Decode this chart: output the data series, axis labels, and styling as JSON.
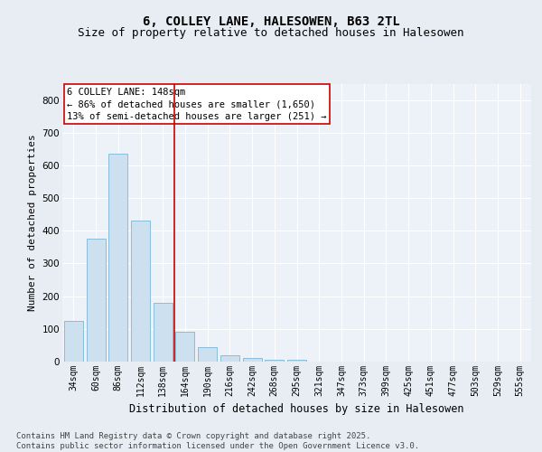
{
  "title1": "6, COLLEY LANE, HALESOWEN, B63 2TL",
  "title2": "Size of property relative to detached houses in Halesowen",
  "xlabel": "Distribution of detached houses by size in Halesowen",
  "ylabel": "Number of detached properties",
  "categories": [
    "34sqm",
    "60sqm",
    "86sqm",
    "112sqm",
    "138sqm",
    "164sqm",
    "190sqm",
    "216sqm",
    "242sqm",
    "268sqm",
    "295sqm",
    "321sqm",
    "347sqm",
    "373sqm",
    "399sqm",
    "425sqm",
    "451sqm",
    "477sqm",
    "503sqm",
    "529sqm",
    "555sqm"
  ],
  "values": [
    125,
    375,
    635,
    430,
    180,
    90,
    45,
    20,
    12,
    5,
    5,
    0,
    0,
    0,
    0,
    0,
    0,
    0,
    0,
    0,
    0
  ],
  "bar_color": "#cce0f0",
  "bar_edge_color": "#7ab8d8",
  "marker_line_color": "#cc0000",
  "annotation_text": "6 COLLEY LANE: 148sqm\n← 86% of detached houses are smaller (1,650)\n13% of semi-detached houses are larger (251) →",
  "annotation_box_color": "#ffffff",
  "annotation_border_color": "#cc0000",
  "ylim": [
    0,
    850
  ],
  "yticks": [
    0,
    100,
    200,
    300,
    400,
    500,
    600,
    700,
    800
  ],
  "bg_color": "#e8edf4",
  "plot_bg_color": "#edf1f8",
  "footer_text": "Contains HM Land Registry data © Crown copyright and database right 2025.\nContains public sector information licensed under the Open Government Licence v3.0.",
  "title1_fontsize": 10,
  "title2_fontsize": 9,
  "axis_label_fontsize": 8,
  "tick_fontsize": 7,
  "annotation_fontsize": 7.5,
  "footer_fontsize": 6.5
}
